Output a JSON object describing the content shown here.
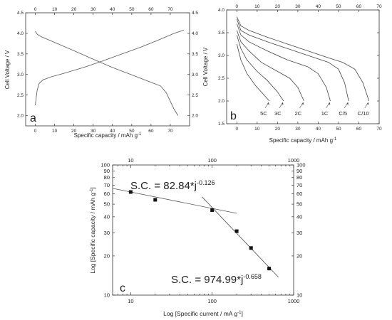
{
  "chart_data": [
    {
      "panel": "a",
      "type": "line",
      "xlabel": "Specific capacity / mAh g",
      "xlabel_sup": "-1",
      "ylabel": "Cell Voltage / V",
      "xlim": [
        -5,
        80
      ],
      "ylim": [
        1.75,
        4.5
      ],
      "xticks": [
        0,
        10,
        20,
        30,
        40,
        50,
        60,
        70
      ],
      "yticks": [
        2.0,
        2.5,
        3.0,
        3.5,
        4.0,
        4.5
      ],
      "ytick_labels": [
        "2.0",
        "2.5",
        "3.0",
        "3.5",
        "4.0",
        "4.5"
      ],
      "mirror_axes": true,
      "series": [
        {
          "x": [
            0,
            1,
            3,
            6,
            10,
            20,
            30,
            40,
            50,
            60,
            65,
            68,
            70,
            72,
            74
          ],
          "y": [
            4.05,
            3.98,
            3.92,
            3.86,
            3.78,
            3.58,
            3.37,
            3.17,
            2.99,
            2.81,
            2.72,
            2.55,
            2.35,
            2.15,
            2.0
          ]
        },
        {
          "x": [
            0,
            0.5,
            1,
            2,
            4,
            8,
            15,
            25,
            35,
            45,
            55,
            65,
            72,
            77
          ],
          "y": [
            2.25,
            2.45,
            2.62,
            2.78,
            2.87,
            2.94,
            3.03,
            3.17,
            3.33,
            3.5,
            3.67,
            3.86,
            4.0,
            4.08
          ]
        }
      ]
    },
    {
      "panel": "b",
      "type": "line",
      "xlabel": "Specific capacity / mAh g",
      "xlabel_sup": "-1",
      "ylabel": "Cell Voltage / V",
      "xlim": [
        -5,
        70
      ],
      "ylim": [
        1.5,
        4.0
      ],
      "xticks": [
        0,
        10,
        20,
        30,
        40,
        50,
        60,
        70
      ],
      "yticks": [
        1.5,
        2.0,
        2.5,
        3.0,
        3.5,
        4.0
      ],
      "ytick_labels": [
        "1.5",
        "2.0",
        "2.5",
        "3.0",
        "3.5",
        "4.0"
      ],
      "mirror_axes": true,
      "series": [
        {
          "name": "5C",
          "x": [
            0,
            2,
            5,
            9,
            13,
            16
          ],
          "y": [
            3.25,
            2.9,
            2.6,
            2.35,
            2.15,
            2.0
          ]
        },
        {
          "name": "3C",
          "x": [
            0,
            2,
            5,
            10,
            15,
            20,
            23
          ],
          "y": [
            3.45,
            3.15,
            2.9,
            2.65,
            2.45,
            2.2,
            2.0
          ]
        },
        {
          "name": "2C",
          "x": [
            0,
            2,
            6,
            12,
            20,
            26,
            30,
            33
          ],
          "y": [
            3.55,
            3.3,
            3.1,
            2.85,
            2.65,
            2.5,
            2.3,
            2.0
          ]
        },
        {
          "name": "1C",
          "x": [
            0,
            2,
            6,
            15,
            25,
            35,
            40,
            44,
            46
          ],
          "y": [
            3.7,
            3.45,
            3.3,
            3.1,
            2.9,
            2.75,
            2.6,
            2.3,
            2.0
          ]
        },
        {
          "name": "C/5",
          "x": [
            0,
            2,
            6,
            15,
            25,
            35,
            45,
            50,
            53,
            55
          ],
          "y": [
            3.8,
            3.55,
            3.45,
            3.3,
            3.15,
            3.0,
            2.85,
            2.7,
            2.4,
            2.0
          ]
        },
        {
          "name": "C/10",
          "x": [
            0,
            2,
            6,
            15,
            25,
            35,
            45,
            52,
            58,
            62,
            65
          ],
          "y": [
            3.85,
            3.65,
            3.55,
            3.4,
            3.25,
            3.1,
            2.95,
            2.85,
            2.7,
            2.4,
            2.0
          ]
        }
      ]
    },
    {
      "panel": "c",
      "type": "scatter",
      "xlabel": "Log [Specific current / mA g",
      "xlabel_sup": "-1",
      "xlabel_tail": "]",
      "ylabel": "Log [Specific capacity / mAh g",
      "ylabel_sup": "-1",
      "ylabel_tail": "]",
      "xscale": "log",
      "yscale": "log",
      "xlim": [
        6,
        1000
      ],
      "ylim": [
        10,
        100
      ],
      "xticks": [
        10,
        100,
        1000
      ],
      "yticks": [
        10,
        20,
        30,
        40,
        50,
        60,
        70,
        80,
        90,
        100
      ],
      "mirror_axes": true,
      "points": {
        "x": [
          10,
          20,
          100,
          200,
          300,
          500
        ],
        "y": [
          62,
          54,
          45,
          31,
          23,
          16
        ]
      },
      "fits": [
        {
          "coef": 82.84,
          "exp": -0.126,
          "x_range": [
            6,
            200
          ]
        },
        {
          "coef": 974.99,
          "exp": -0.658,
          "x_range": [
            75,
            650
          ]
        }
      ],
      "annotations": [
        {
          "text": "S.C. = 82.84*j",
          "sup": "-0.126"
        },
        {
          "text": "S.C. = 974.99*j",
          "sup": "-0.658"
        }
      ]
    }
  ],
  "panel_letters": [
    "a",
    "b",
    "c"
  ],
  "rate_labels": [
    "5C",
    "3C",
    "2C",
    "1C",
    "C/5",
    "C/10"
  ]
}
